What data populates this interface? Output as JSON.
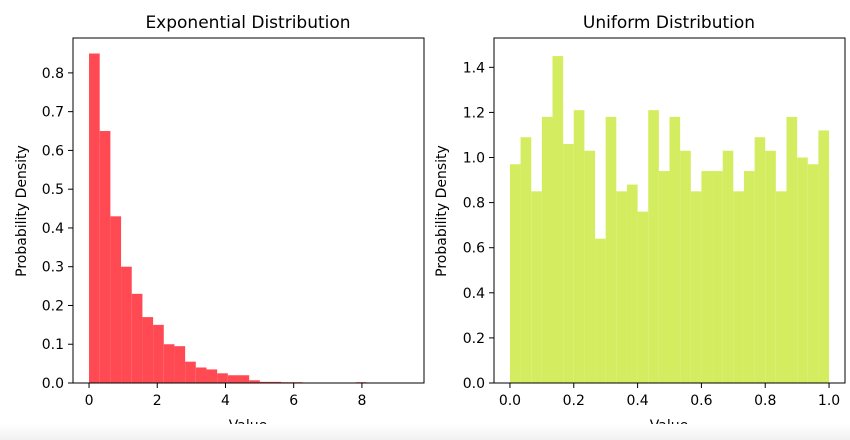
{
  "chart_data": [
    {
      "type": "bar",
      "title": "Exponential Distribution",
      "xlabel": "Value",
      "ylabel": "Probability Density",
      "color": "#ff4a53",
      "xlim": [
        -0.47,
        9.82
      ],
      "ylim": [
        0,
        0.89
      ],
      "xticks": [
        0,
        2,
        4,
        6,
        8
      ],
      "yticks": [
        0.0,
        0.1,
        0.2,
        0.3,
        0.4,
        0.5,
        0.6,
        0.7,
        0.8
      ],
      "grid": false,
      "bin_edges": [
        0,
        0.313,
        0.626,
        0.939,
        1.252,
        1.565,
        1.878,
        2.191,
        2.504,
        2.817,
        3.13,
        3.443,
        3.756,
        4.069,
        4.382,
        4.695,
        5.008,
        5.321,
        5.634,
        5.947,
        6.26,
        6.573,
        6.886,
        7.199,
        7.512,
        7.825,
        8.138,
        8.451,
        8.764,
        9.077,
        9.39
      ],
      "values": [
        0.85,
        0.65,
        0.43,
        0.3,
        0.23,
        0.17,
        0.15,
        0.1,
        0.095,
        0.055,
        0.04,
        0.035,
        0.025,
        0.02,
        0.02,
        0.007,
        0.003,
        0.003,
        0.002,
        0.002,
        0.0,
        0.0,
        0.0,
        0.0,
        0.0,
        0.002,
        0.001,
        0.0,
        0.001,
        0.001
      ]
    },
    {
      "type": "bar",
      "title": "Uniform Distribution",
      "xlabel": "Value",
      "ylabel": "Probability Density",
      "color": "#d4ed60",
      "xlim": [
        -0.05,
        1.05
      ],
      "ylim": [
        0,
        1.53
      ],
      "xticks": [
        0.0,
        0.2,
        0.4,
        0.6,
        0.8,
        1.0
      ],
      "yticks": [
        0.0,
        0.2,
        0.4,
        0.6,
        0.8,
        1.0,
        1.2,
        1.4
      ],
      "grid": false,
      "bin_edges": [
        0.0,
        0.0333,
        0.0667,
        0.1,
        0.1333,
        0.1667,
        0.2,
        0.2333,
        0.2667,
        0.3,
        0.3333,
        0.3667,
        0.4,
        0.4333,
        0.4667,
        0.5,
        0.5333,
        0.5667,
        0.6,
        0.6333,
        0.6667,
        0.7,
        0.7333,
        0.7667,
        0.8,
        0.8333,
        0.8667,
        0.9,
        0.9333,
        0.9667,
        1.0
      ],
      "values": [
        0.97,
        1.09,
        0.85,
        1.18,
        1.45,
        1.06,
        1.21,
        1.03,
        0.64,
        1.18,
        0.85,
        0.88,
        0.76,
        1.21,
        0.94,
        1.18,
        1.03,
        0.85,
        0.94,
        0.94,
        1.03,
        0.85,
        0.94,
        1.09,
        1.03,
        0.85,
        1.18,
        1.0,
        0.97,
        1.12
      ]
    }
  ]
}
